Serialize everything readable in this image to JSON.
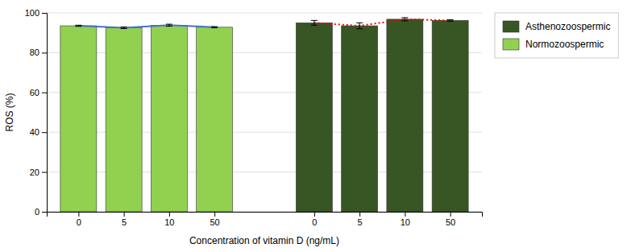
{
  "chart_data": {
    "type": "bar",
    "xlabel": "Concentration of vitamin D (ng/mL)",
    "ylabel": "ROS (%)",
    "categories": [
      "0",
      "5",
      "10",
      "50",
      "0",
      "5",
      "10",
      "50"
    ],
    "series": [
      {
        "name": "Asthenozoospermic",
        "type": "bar",
        "color": "#375623",
        "values": [
          null,
          null,
          null,
          null,
          95.0,
          93.5,
          96.8,
          96.2
        ],
        "errors": [
          null,
          null,
          null,
          null,
          1.2,
          1.5,
          0.8,
          0.4
        ]
      },
      {
        "name": "Normozoospermic",
        "type": "bar",
        "color": "#92d050",
        "values": [
          93.5,
          92.5,
          93.8,
          92.8,
          null,
          null,
          null,
          null
        ],
        "errors": [
          0.3,
          0.4,
          0.5,
          0.3,
          null,
          null,
          null,
          null
        ]
      },
      {
        "type": "line",
        "color": "#4472c4",
        "line_style": "solid",
        "values": [
          93.5,
          92.5,
          93.8,
          92.8,
          null,
          null,
          null,
          null
        ]
      },
      {
        "type": "line",
        "color": "#ff0000",
        "line_style": "dotted",
        "values": [
          null,
          null,
          null,
          null,
          95.0,
          93.5,
          96.8,
          96.2
        ]
      }
    ],
    "ylim": [
      0,
      100
    ],
    "yticks": [
      0,
      20,
      40,
      60,
      80,
      100
    ],
    "grid": true,
    "legend": "right"
  }
}
